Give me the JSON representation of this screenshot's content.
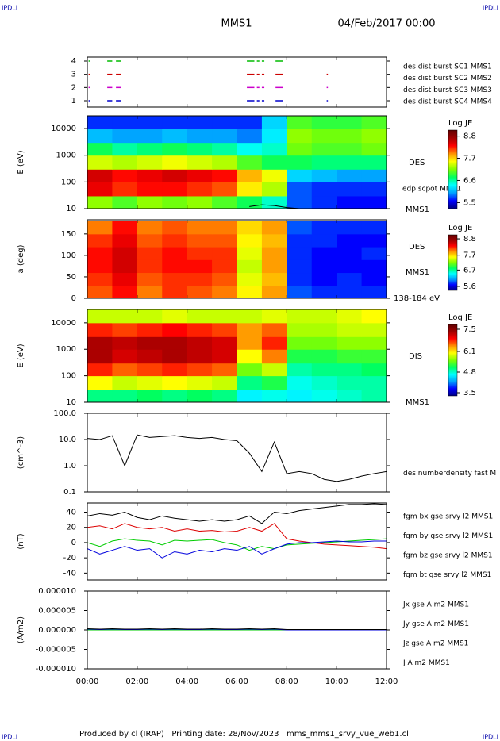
{
  "header": {
    "corner": "IPDLI",
    "title": "MMS1",
    "date": "04/Feb/2017 00:00"
  },
  "footer": "Produced by cl (IRAP)   Printing date: 28/Nov/2023   mms_mms1_srvy_vue_web1.cl",
  "chart_data": [
    {
      "type": "timeline",
      "ylim": [
        0.52,
        4.3
      ],
      "yticks": [
        1,
        2,
        3,
        4
      ],
      "series": [
        {
          "name": "des dist burst SC1 MMS1",
          "color": "#0000cc",
          "y": 1,
          "intervals": [
            [
              0.05,
              0.1
            ],
            [
              0.8,
              1.0
            ],
            [
              1.15,
              1.35
            ],
            [
              6.4,
              6.7
            ],
            [
              6.8,
              6.9
            ],
            [
              7.0,
              7.1
            ],
            [
              7.55,
              7.85
            ],
            [
              9.6,
              9.65
            ]
          ]
        },
        {
          "name": "des dist burst SC2 MMS2",
          "color": "#cc00cc",
          "y": 2,
          "intervals": [
            [
              0.05,
              0.1
            ],
            [
              0.8,
              1.0
            ],
            [
              1.15,
              1.35
            ],
            [
              6.4,
              6.7
            ],
            [
              6.8,
              6.9
            ],
            [
              7.0,
              7.1
            ],
            [
              7.55,
              7.85
            ],
            [
              9.6,
              9.65
            ]
          ]
        },
        {
          "name": "des dist burst SC3 MMS3",
          "color": "#cc0000",
          "y": 3,
          "intervals": [
            [
              0.05,
              0.1
            ],
            [
              0.8,
              1.0
            ],
            [
              1.15,
              1.35
            ],
            [
              6.4,
              6.7
            ],
            [
              6.8,
              6.9
            ],
            [
              7.0,
              7.1
            ],
            [
              7.55,
              7.85
            ],
            [
              9.6,
              9.65
            ]
          ]
        },
        {
          "name": "des dist burst SC4 MMS4",
          "color": "#00bb00",
          "y": 4,
          "intervals": [
            [
              0.05,
              0.1
            ],
            [
              0.8,
              1.0
            ],
            [
              1.15,
              1.35
            ],
            [
              6.4,
              6.7
            ],
            [
              6.8,
              6.9
            ],
            [
              7.0,
              7.1
            ],
            [
              7.55,
              7.85
            ]
          ]
        }
      ]
    },
    {
      "type": "heatmap",
      "ylabel": "E (eV)",
      "log": true,
      "ylim": [
        10,
        30000
      ],
      "yticks": [
        10,
        100,
        1000,
        10000
      ],
      "colorbar_title": "Log JE",
      "clim": [
        5.2,
        9.1
      ],
      "cticks": [
        8.8,
        7.7,
        6.6,
        5.5
      ],
      "labels": [
        "DES",
        "MMS1"
      ],
      "x_edges": [
        0,
        1,
        2,
        3,
        4,
        5,
        6,
        7,
        8,
        9,
        10,
        11,
        12
      ],
      "y_edges": [
        10,
        30,
        100,
        300,
        1000,
        3000,
        10000,
        30000
      ],
      "z": [
        [
          7.2,
          7.0,
          7.2,
          7.1,
          7.2,
          7.0,
          6.8,
          6.5,
          5.8,
          5.7,
          5.6,
          5.6
        ],
        [
          8.4,
          8.2,
          8.3,
          8.3,
          8.2,
          8.1,
          7.6,
          7.3,
          5.8,
          5.7,
          5.7,
          5.7
        ],
        [
          8.5,
          8.3,
          8.4,
          8.5,
          8.4,
          8.3,
          7.8,
          7.5,
          6.2,
          6.1,
          6.0,
          6.0
        ],
        [
          7.4,
          7.3,
          7.4,
          7.5,
          7.4,
          7.3,
          7.0,
          6.8,
          6.8,
          6.7,
          6.7,
          6.7
        ],
        [
          6.8,
          6.6,
          6.7,
          6.8,
          6.7,
          6.6,
          6.4,
          6.5,
          7.1,
          7.0,
          7.0,
          7.1
        ],
        [
          6.1,
          6.0,
          6.0,
          6.1,
          6.0,
          6.0,
          5.9,
          6.3,
          7.2,
          7.1,
          7.1,
          7.2
        ],
        [
          5.7,
          5.7,
          5.7,
          5.7,
          5.7,
          5.7,
          5.7,
          6.2,
          7.0,
          6.9,
          6.9,
          7.0
        ]
      ],
      "series": [
        {
          "name": "edp scpot MMS1",
          "color": "#000000",
          "x": [
            6.5,
            7.0,
            7.5,
            8.0,
            8.5
          ],
          "values": [
            12,
            14,
            13,
            11,
            10
          ]
        }
      ]
    },
    {
      "type": "heatmap",
      "ylabel": "a (deg)",
      "log": false,
      "ylim": [
        0,
        183
      ],
      "yticks": [
        0,
        50,
        100,
        150
      ],
      "colorbar_title": "Log JE",
      "clim": [
        5.33,
        9.07
      ],
      "cticks": [
        8.8,
        7.7,
        6.7,
        5.6
      ],
      "labels": [
        "DES",
        "MMS1",
        "138-184 eV"
      ],
      "x_edges": [
        0,
        1,
        2,
        3,
        4,
        5,
        6,
        7,
        8,
        9,
        10,
        11,
        12
      ],
      "y_edges": [
        0,
        30,
        60,
        90,
        120,
        150,
        180
      ],
      "z": [
        [
          8.1,
          8.3,
          8.0,
          8.2,
          8.1,
          8.0,
          7.6,
          7.9,
          5.9,
          5.8,
          5.8,
          5.8
        ],
        [
          8.2,
          8.4,
          8.1,
          8.2,
          8.2,
          8.1,
          7.5,
          7.8,
          5.8,
          5.7,
          5.8,
          5.7
        ],
        [
          8.3,
          8.5,
          8.2,
          8.3,
          8.3,
          8.2,
          7.4,
          7.9,
          5.8,
          5.7,
          5.7,
          5.7
        ],
        [
          8.3,
          8.5,
          8.2,
          8.3,
          8.2,
          8.2,
          7.5,
          7.9,
          5.8,
          5.7,
          5.7,
          5.8
        ],
        [
          8.2,
          8.4,
          8.1,
          8.2,
          8.1,
          8.1,
          7.6,
          7.8,
          5.8,
          5.8,
          5.7,
          5.7
        ],
        [
          8.0,
          8.3,
          8.0,
          8.1,
          8.0,
          8.0,
          7.7,
          7.9,
          5.9,
          5.8,
          5.8,
          5.8
        ]
      ]
    },
    {
      "type": "heatmap",
      "ylabel": "E (eV)",
      "log": true,
      "ylim": [
        10,
        32000
      ],
      "yticks": [
        10,
        100,
        1000,
        10000
      ],
      "colorbar_title": "Log JE",
      "clim": [
        3.3,
        7.8
      ],
      "cticks": [
        7.5,
        6.1,
        4.8,
        3.5
      ],
      "labels": [
        "DIS",
        "MMS1"
      ],
      "x_edges": [
        0,
        1,
        2,
        3,
        4,
        5,
        6,
        7,
        8,
        9,
        10,
        11,
        12
      ],
      "y_edges": [
        10,
        30,
        100,
        300,
        1000,
        3000,
        10000,
        32000
      ],
      "z": [
        [
          5.0,
          5.0,
          5.1,
          5.0,
          5.1,
          5.0,
          4.6,
          4.7,
          4.6,
          4.7,
          4.8,
          4.9
        ],
        [
          6.0,
          5.8,
          5.9,
          6.0,
          5.9,
          5.8,
          5.0,
          5.2,
          4.7,
          4.8,
          4.9,
          4.9
        ],
        [
          6.8,
          6.6,
          6.7,
          6.8,
          6.7,
          6.6,
          5.5,
          5.8,
          4.9,
          5.0,
          5.0,
          5.1
        ],
        [
          7.3,
          7.1,
          7.2,
          7.3,
          7.2,
          7.1,
          6.0,
          6.5,
          5.2,
          5.2,
          5.3,
          5.3
        ],
        [
          7.3,
          7.2,
          7.3,
          7.3,
          7.2,
          7.1,
          6.4,
          6.8,
          5.5,
          5.5,
          5.6,
          5.6
        ],
        [
          6.8,
          6.7,
          6.8,
          6.9,
          6.8,
          6.7,
          6.4,
          6.6,
          5.7,
          5.7,
          5.8,
          5.8
        ],
        [
          5.8,
          5.8,
          5.8,
          5.9,
          5.8,
          5.8,
          5.8,
          5.9,
          5.8,
          5.8,
          5.9,
          6.0
        ]
      ]
    },
    {
      "type": "line",
      "ylabel": "(cm^-3)",
      "log": true,
      "ylim": [
        0.1,
        100
      ],
      "yticks": [
        {
          "value": 100,
          "label": "100.0"
        },
        {
          "value": 10,
          "label": "10.0"
        },
        {
          "value": 1,
          "label": "1.0"
        },
        {
          "value": 0.1,
          "label": "0.1"
        }
      ],
      "x": [
        0,
        0.5,
        1,
        1.5,
        2,
        2.5,
        3,
        3.5,
        4,
        4.5,
        5,
        5.5,
        6,
        6.5,
        7,
        7.5,
        8,
        8.5,
        9,
        9.5,
        10,
        10.5,
        11,
        11.5,
        12
      ],
      "series": [
        {
          "name": "des numberdensity fast M",
          "color": "#000000",
          "values": [
            11,
            10,
            14,
            1.0,
            15,
            12,
            13,
            14,
            12,
            11,
            12,
            10,
            9,
            3,
            0.6,
            8,
            0.5,
            0.6,
            0.5,
            0.3,
            0.25,
            0.3,
            0.4,
            0.5,
            0.6
          ]
        }
      ]
    },
    {
      "type": "line",
      "ylabel": "(nT)",
      "log": false,
      "ylim": [
        -49,
        52
      ],
      "yticks": [
        40,
        20,
        0,
        -20,
        -40
      ],
      "x": [
        0,
        0.5,
        1,
        1.5,
        2,
        2.5,
        3,
        3.5,
        4,
        4.5,
        5,
        5.5,
        6,
        6.5,
        7,
        7.5,
        8,
        8.5,
        9,
        9.5,
        10,
        10.5,
        11,
        11.5,
        12
      ],
      "series": [
        {
          "name": "fgm bx gse srvy l2 MMS1",
          "color": "#dd0000",
          "values": [
            20,
            22,
            18,
            25,
            20,
            18,
            20,
            15,
            18,
            15,
            16,
            14,
            15,
            20,
            15,
            25,
            5,
            2,
            0,
            -2,
            -3,
            -4,
            -5,
            -6,
            -8
          ]
        },
        {
          "name": "fgm by gse srvy l2 MMS1",
          "color": "#00cc00",
          "values": [
            0,
            -5,
            2,
            5,
            3,
            2,
            -3,
            3,
            2,
            3,
            4,
            0,
            -3,
            -10,
            -5,
            -8,
            -3,
            -2,
            -1,
            0,
            1,
            2,
            3,
            4,
            5
          ]
        },
        {
          "name": "fgm bz gse srvy l2 MMS1",
          "color": "#0000dd",
          "values": [
            -8,
            -15,
            -10,
            -5,
            -10,
            -8,
            -20,
            -12,
            -15,
            -10,
            -12,
            -8,
            -10,
            -5,
            -15,
            -8,
            -2,
            0,
            0,
            1,
            2,
            1,
            1,
            2,
            2
          ]
        },
        {
          "name": "fgm bt gse srvy l2 MMS1",
          "color": "#000000",
          "values": [
            35,
            38,
            36,
            40,
            33,
            30,
            35,
            32,
            30,
            28,
            30,
            28,
            30,
            35,
            25,
            40,
            38,
            42,
            44,
            46,
            48,
            50,
            50,
            51,
            50
          ]
        }
      ]
    },
    {
      "type": "line",
      "ylabel": "(A/m2)",
      "log": false,
      "ylim": [
        -1e-05,
        1e-05
      ],
      "yticks": [
        {
          "value": 1e-05,
          "label": "0.000010"
        },
        {
          "value": 5e-06,
          "label": "0.000005"
        },
        {
          "value": 0,
          "label": "0.000000"
        },
        {
          "value": -5e-06,
          "label": "-0.000005"
        },
        {
          "value": -1e-05,
          "label": "-0.000010"
        }
      ],
      "xlim": [
        0,
        12
      ],
      "xticks": [
        {
          "value": 0,
          "label": "00:00"
        },
        {
          "value": 2,
          "label": "02:00"
        },
        {
          "value": 4,
          "label": "04:00"
        },
        {
          "value": 6,
          "label": "06:00"
        },
        {
          "value": 8,
          "label": "08:00"
        },
        {
          "value": 10,
          "label": "10:00"
        },
        {
          "value": 12,
          "label": "12:00"
        }
      ],
      "x": [
        0,
        0.5,
        1,
        1.5,
        2,
        2.5,
        3,
        3.5,
        4,
        4.5,
        5,
        5.5,
        6,
        6.5,
        7,
        7.5,
        8,
        8.5,
        9,
        9.5,
        10,
        10.5,
        11,
        11.5,
        12
      ],
      "series": [
        {
          "name": "Jx gse A m2 MMS1",
          "color": "#dd0000",
          "values": [
            0,
            0,
            0,
            0,
            0,
            0,
            0,
            0,
            0,
            0,
            0,
            0,
            0,
            0,
            0,
            0,
            0,
            0,
            0,
            0,
            0,
            0,
            0,
            0,
            0
          ]
        },
        {
          "name": "Jy gse A m2 MMS1",
          "color": "#00cc00",
          "values": [
            0,
            0,
            0,
            0,
            0,
            0,
            0,
            0,
            0,
            0,
            0,
            0,
            0,
            0,
            0,
            0,
            0,
            0,
            0,
            0,
            0,
            0,
            0,
            0,
            0
          ]
        },
        {
          "name": "Jz gse A m2 MMS1",
          "color": "#0000dd",
          "values": [
            2e-07,
            1e-07,
            2e-07,
            1e-07,
            1e-07,
            2e-07,
            1e-07,
            2e-07,
            1e-07,
            1e-07,
            2e-07,
            1e-07,
            1e-07,
            2e-07,
            1e-07,
            2e-07,
            0,
            0,
            0,
            0,
            0,
            0,
            0,
            0,
            0
          ]
        },
        {
          "name": "J A m2 MMS1",
          "color": "#000000",
          "values": [
            3e-07,
            2e-07,
            3e-07,
            2e-07,
            2e-07,
            3e-07,
            2e-07,
            3e-07,
            2e-07,
            2e-07,
            3e-07,
            2e-07,
            2e-07,
            3e-07,
            2e-07,
            3e-07,
            1e-07,
            1e-07,
            1e-07,
            1e-07,
            1e-07,
            1e-07,
            1e-07,
            1e-07,
            1e-07
          ]
        }
      ]
    }
  ]
}
